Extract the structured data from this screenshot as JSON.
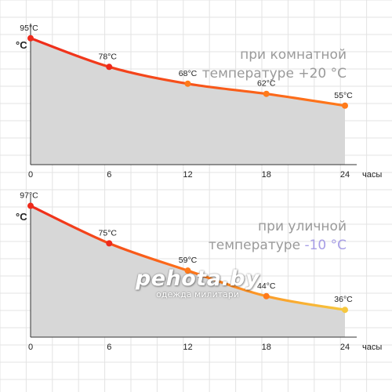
{
  "colors": {
    "grid": "#e3e3e3",
    "axis": "#333333",
    "fill": "#d7d7d7",
    "text": "#222222",
    "caption": "#9a9a9a",
    "cold_accent": "#a79ee6",
    "hot": "#ee2a1b",
    "warm": "#ff7a1a",
    "yellow": "#f6c73e"
  },
  "chart_data": [
    {
      "type": "area",
      "ylabel": "°C",
      "xlabel": "часы",
      "x": [
        0,
        6,
        12,
        18,
        24
      ],
      "x_tick_labels": [
        "0",
        "6",
        "12",
        "18",
        "24"
      ],
      "values": [
        95,
        78,
        68,
        62,
        55
      ],
      "point_labels": [
        "95°C",
        "78°C",
        "68°C",
        "62°C",
        "55°C"
      ],
      "ylim": [
        20,
        100
      ],
      "annotation": {
        "line1": "при комнатной",
        "line2": "температуре +20 °C"
      },
      "gradient": [
        "#ee2a1b",
        "#ff7a1a"
      ],
      "grid": true
    },
    {
      "type": "area",
      "ylabel": "°C",
      "xlabel": "часы",
      "x": [
        0,
        6,
        12,
        18,
        24
      ],
      "x_tick_labels": [
        "0",
        "6",
        "12",
        "18",
        "24"
      ],
      "values": [
        97,
        75,
        59,
        44,
        36
      ],
      "point_labels": [
        "97°C",
        "75°C",
        "59°C",
        "44°C",
        "36°C"
      ],
      "ylim": [
        20,
        100
      ],
      "annotation": {
        "line1": "при уличной",
        "line2_prefix": "температуре ",
        "line2_value": "-10 °C"
      },
      "gradient": [
        "#ee2a1b",
        "#ff7a1a",
        "#f6c73e"
      ],
      "grid": true
    }
  ],
  "watermark": {
    "brand": "pehota.by",
    "tagline": "одежда милитари"
  }
}
